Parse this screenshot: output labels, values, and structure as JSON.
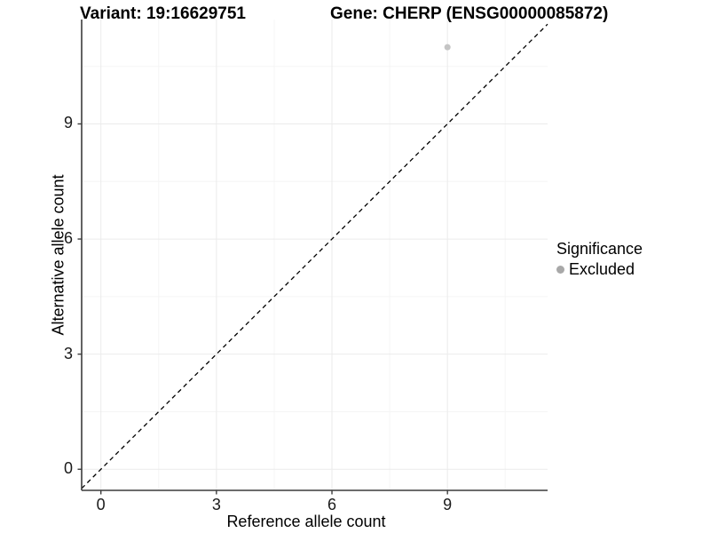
{
  "header": {
    "variant_title": "Variant: 19:16629751",
    "gene_title": "Gene: CHERP (ENSG00000085872)"
  },
  "chart_data": {
    "type": "scatter",
    "title": "Variant: 19:16629751  Gene: CHERP (ENSG00000085872)",
    "xlabel": "Reference allele count",
    "ylabel": "Alternative allele count",
    "xlim": [
      -0.5,
      11.6
    ],
    "ylim": [
      -0.55,
      11.72
    ],
    "x_ticks": [
      0,
      3,
      6,
      9
    ],
    "y_ticks": [
      0,
      3,
      6,
      9
    ],
    "x_minor_ticks": [
      1.5,
      4.5,
      7.5,
      10.5
    ],
    "y_minor_ticks": [
      1.5,
      4.5,
      7.5,
      10.5
    ],
    "grid": true,
    "series": [
      {
        "name": "Excluded",
        "points": [
          {
            "x": 9,
            "y": 11
          }
        ]
      }
    ],
    "reference_line": {
      "kind": "identity",
      "slope": 1,
      "intercept": 0,
      "style": "dashed"
    },
    "legend": {
      "title": "Significance",
      "position": "right",
      "entries": [
        {
          "label": "Excluded"
        }
      ]
    }
  },
  "colors": {
    "background": "#ffffff",
    "grid_major": "#ebebeb",
    "grid_minor": "#f5f5f5",
    "axis_line": "#3c3c3c",
    "tick_mark": "#3c3c3c",
    "dashed_line": "#000000",
    "point_fill": "#c4c4c4",
    "legend_dot": "#a8a8a8",
    "text": "#000000"
  }
}
